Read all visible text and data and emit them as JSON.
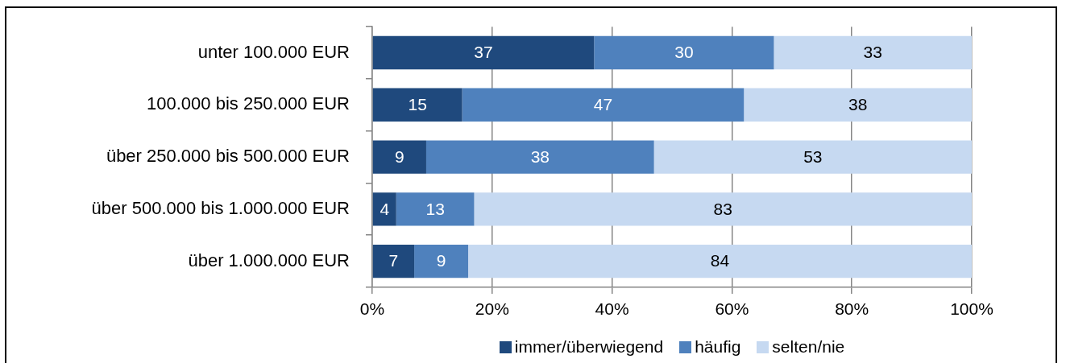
{
  "chart_data": {
    "type": "bar",
    "orientation": "horizontal",
    "stacked": true,
    "categories": [
      "unter 100.000 EUR",
      "100.000 bis 250.000 EUR",
      "über 250.000 bis 500.000 EUR",
      "über 500.000 bis 1.000.000 EUR",
      "über 1.000.000 EUR"
    ],
    "series": [
      {
        "name": "immer/überwiegend",
        "color": "#1f497d",
        "values": [
          37,
          15,
          9,
          4,
          7
        ]
      },
      {
        "name": "häufig",
        "color": "#4f81bd",
        "values": [
          30,
          47,
          38,
          13,
          9
        ]
      },
      {
        "name": "selten/nie",
        "color": "#c6d9f1",
        "values": [
          33,
          38,
          53,
          83,
          84
        ]
      }
    ],
    "xlim": [
      0,
      100
    ],
    "xticks": [
      {
        "value": 0,
        "label": "0%"
      },
      {
        "value": 20,
        "label": "20%"
      },
      {
        "value": 40,
        "label": "40%"
      },
      {
        "value": 60,
        "label": "60%"
      },
      {
        "value": 80,
        "label": "80%"
      },
      {
        "value": 100,
        "label": "100%"
      }
    ],
    "grid": "x",
    "legend": "bottom",
    "data_labels": true
  }
}
